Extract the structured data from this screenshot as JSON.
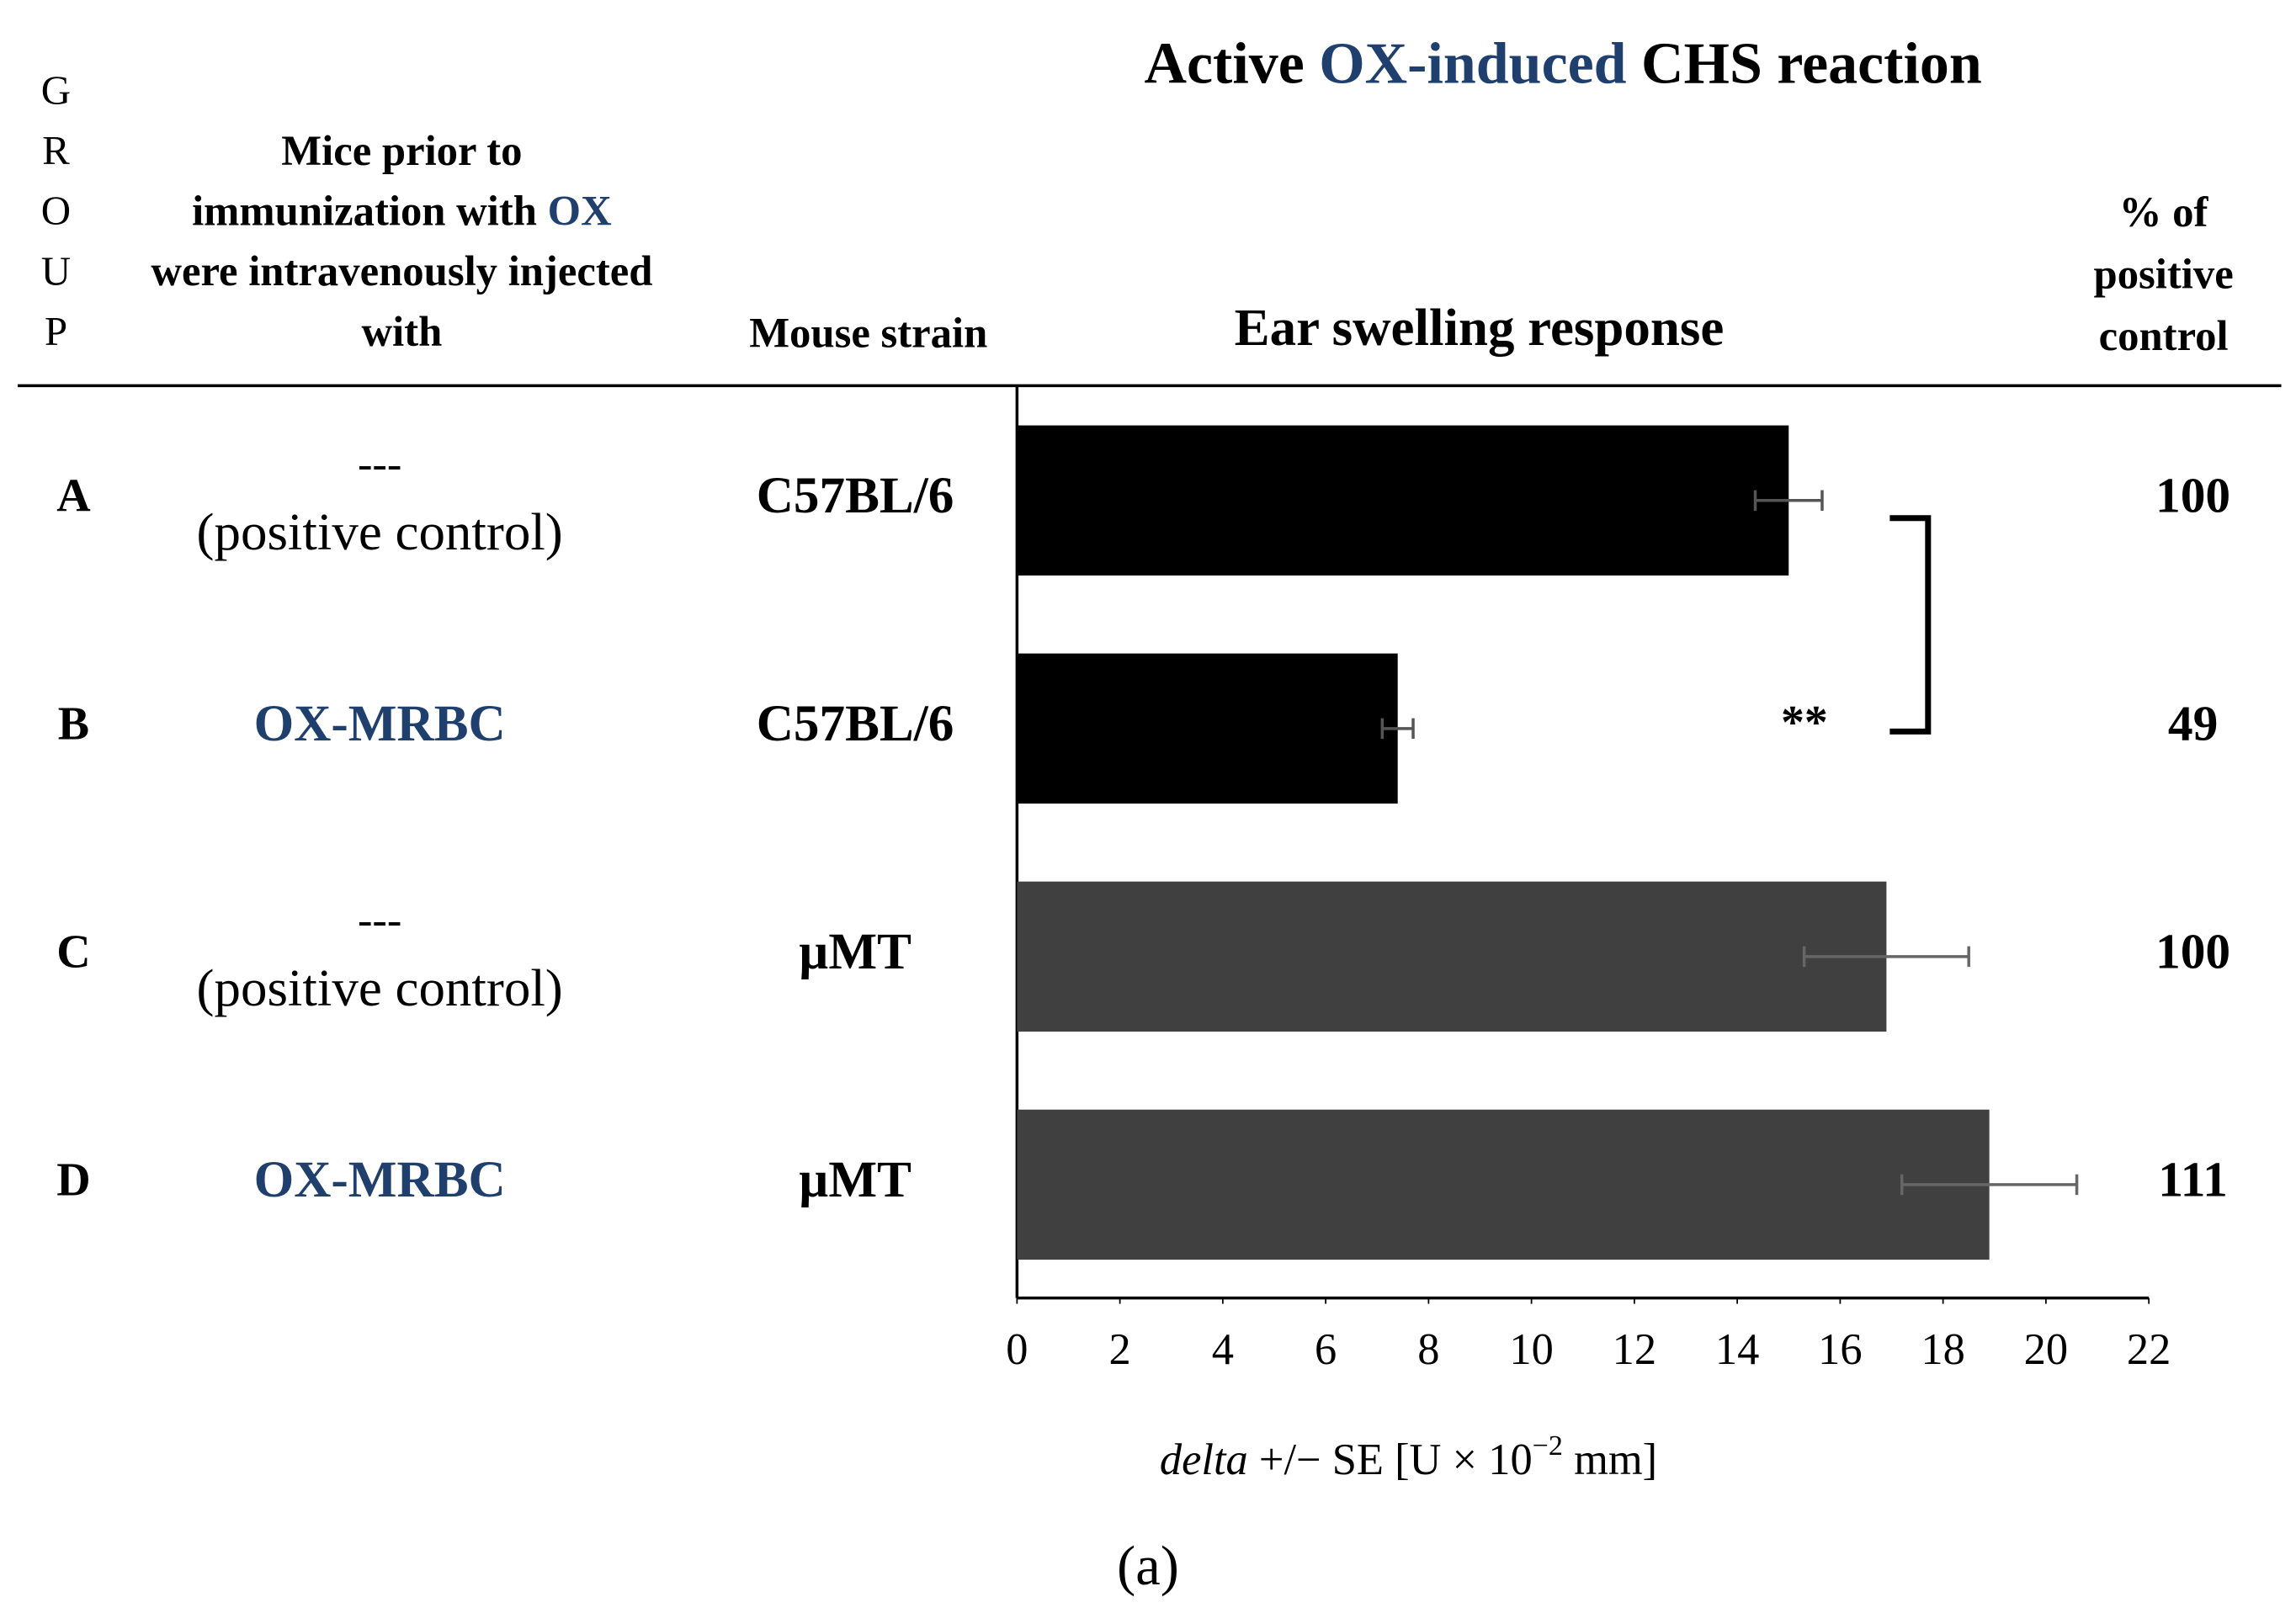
{
  "chart_data": {
    "type": "bar",
    "orientation": "horizontal",
    "title": [
      {
        "text": "Active "
      },
      {
        "text": "OX-induced",
        "color": "#1f3f6e"
      },
      {
        "text": "  CHS reaction"
      }
    ],
    "group_header": "GROUP",
    "treatment_header": [
      [
        {
          "text": "Mice prior  to"
        }
      ],
      [
        {
          "text": "immunization  with  "
        },
        {
          "text": "OX",
          "color": "#1f3f6e"
        }
      ],
      [
        {
          "text": "were intravenously  injected"
        }
      ],
      [
        {
          "text": "with"
        }
      ]
    ],
    "strain_header": "Mouse strain",
    "chart_header": "Ear swelling response",
    "percent_header": [
      "% of",
      "positive",
      "control"
    ],
    "rows": [
      {
        "group": "A",
        "treatment": [
          "---",
          "(positive control)"
        ],
        "strain": "C57BL/6",
        "percent": 100
      },
      {
        "group": "B",
        "treatment": [
          "OX-MRBC"
        ],
        "strain": "C57BL/6",
        "percent": 49
      },
      {
        "group": "C",
        "treatment": [
          "---",
          "(positive control)"
        ],
        "strain": "µMT",
        "percent": 100
      },
      {
        "group": "D",
        "treatment": [
          "OX-MRBC"
        ],
        "strain": "µMT",
        "percent": 111
      }
    ],
    "values": [
      15.0,
      7.4,
      16.9,
      18.9
    ],
    "errors": [
      0.65,
      0.3,
      1.6,
      1.7
    ],
    "colors": [
      "#000000",
      "#000000",
      "#404040",
      "#404040"
    ],
    "xlim": [
      0,
      22
    ],
    "xticks": [
      0,
      2,
      4,
      6,
      8,
      10,
      12,
      14,
      16,
      18,
      20,
      22
    ],
    "x_label": [
      {
        "text": "delta",
        "italic": true
      },
      {
        "text": " +/− SE [U × 10"
      },
      {
        "text": "−2",
        "sup": true
      },
      {
        "text": " mm]"
      }
    ],
    "annotation": "**",
    "panel_label": "(a)"
  }
}
